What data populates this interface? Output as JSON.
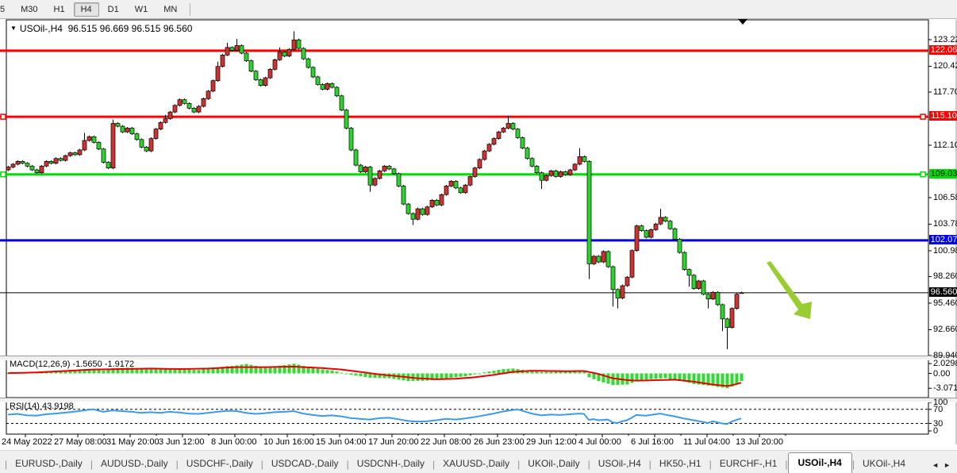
{
  "toolbar": {
    "timeframes": [
      "5",
      "M30",
      "H1",
      "H4",
      "D1",
      "W1",
      "MN"
    ],
    "active": "H4"
  },
  "header": {
    "symbol": "USOil-,H4",
    "ohlc_text": "96.515 96.669 96.515 96.560",
    "dropdown_icon": "chart-symbol-dropdown"
  },
  "tabs": {
    "items": [
      "EURUSD-,Daily",
      "AUDUSD-,Daily",
      "USDCHF-,Daily",
      "USDCAD-,Daily",
      "USDCNH-,Daily",
      "XAUUSD-,Daily",
      "UKOil-,Daily",
      "USOil-,H4",
      "HK50-,H1",
      "EURCHF-,H1",
      "USOil-,H4",
      "UKOil-,H4"
    ],
    "active_index": 10,
    "left_arrow": "◄",
    "right_arrow": "►"
  },
  "chart_data": {
    "type": "candlestick",
    "title": "USOil-,H4 96.515 96.669 96.515 96.560",
    "current_bar": {
      "open": 96.515,
      "high": 96.669,
      "low": 96.515,
      "close": 96.56
    },
    "price_axis_ticks": [
      "123.220",
      "120.420",
      "117.700",
      "112.100",
      "106.580",
      "103.780",
      "100.980",
      "98.260",
      "95.460",
      "92.660",
      "89.940"
    ],
    "horizontal_lines": [
      {
        "price": 122.06,
        "label": "122.06",
        "color": "#ff0000",
        "text": "#ffffff",
        "width": 3
      },
      {
        "price": 115.1,
        "label": "115.10",
        "color": "#ff0000",
        "text": "#ffffff",
        "width": 3,
        "handles": true
      },
      {
        "price": 109.03,
        "label": "109.03",
        "color": "#00dd00",
        "text": "#000000",
        "width": 3,
        "handles": true
      },
      {
        "price": 102.07,
        "label": "102.07",
        "color": "#0000e8",
        "text": "#ffffff",
        "width": 3
      },
      {
        "price": 96.56,
        "label": "96.560",
        "color": "#000000",
        "text": "#ffffff",
        "width": 1
      }
    ],
    "x_axis_labels": [
      "24 May 2022",
      "27 May 08:00",
      "31 May 20:00",
      "3 Jun 12:00",
      "8 Jun 00:00",
      "10 Jun 16:00",
      "15 Jun 04:00",
      "17 Jun 20:00",
      "22 Jun 08:00",
      "26 Jun 23:00",
      "29 Jun 12:00",
      "4 Jul 00:00",
      "6 Jul 16:00",
      "11 Jul 04:00",
      "13 Jul 20:00"
    ],
    "x_label_lefts": [
      2,
      68,
      134,
      200,
      266,
      332,
      398,
      464,
      530,
      597,
      663,
      729,
      795,
      861,
      927
    ],
    "candles": {
      "x0": 10,
      "dx": 6,
      "up_color": "#cc3333",
      "down_color": "#2fd32f",
      "closes": [
        109.8,
        110.1,
        110.4,
        110.2,
        109.9,
        109.5,
        109.2,
        109.9,
        110.4,
        110.2,
        110.7,
        110.5,
        111.0,
        111.3,
        111.1,
        111.6,
        112.6,
        113.0,
        112.4,
        111.7,
        110.3,
        109.7,
        114.4,
        114.1,
        113.5,
        113.9,
        113.3,
        112.7,
        111.9,
        111.5,
        112.8,
        113.8,
        114.5,
        114.9,
        115.6,
        116.3,
        116.9,
        116.5,
        116.0,
        115.6,
        116.2,
        117.0,
        117.8,
        118.9,
        120.4,
        121.6,
        122.4,
        122.1,
        122.6,
        121.8,
        121.0,
        119.9,
        119.0,
        118.4,
        119.2,
        120.1,
        121.1,
        121.9,
        121.5,
        122.2,
        123.2,
        122.3,
        121.2,
        120.3,
        119.3,
        118.5,
        118.0,
        118.6,
        118.2,
        117.3,
        115.8,
        113.9,
        111.6,
        110.0,
        109.3,
        109.8,
        107.9,
        108.6,
        109.4,
        109.9,
        109.6,
        109.1,
        107.8,
        105.9,
        104.9,
        104.3,
        105.4,
        104.8,
        105.6,
        106.3,
        105.8,
        106.9,
        107.8,
        108.3,
        107.6,
        107.1,
        107.9,
        108.8,
        109.7,
        110.6,
        111.5,
        112.2,
        112.8,
        113.5,
        113.9,
        114.4,
        113.8,
        112.9,
        111.8,
        110.7,
        109.9,
        109.2,
        108.4,
        108.9,
        109.4,
        108.8,
        109.3,
        109.0,
        109.5,
        110.1,
        110.9,
        110.4,
        99.6,
        100.4,
        99.8,
        100.9,
        99.3,
        96.9,
        96.0,
        97.3,
        98.2,
        101.0,
        103.6,
        103.1,
        102.4,
        103.2,
        103.8,
        104.5,
        104.1,
        103.3,
        102.2,
        100.8,
        99.0,
        98.4,
        97.0,
        97.8,
        96.4,
        95.9,
        96.6,
        95.3,
        93.8,
        92.9,
        94.9,
        96.4,
        96.56
      ],
      "overrides": {
        "0": {
          "o": 109.5
        },
        "16": {
          "h": 113.4
        },
        "22": {
          "h": 114.8
        },
        "33": {
          "h": 115.3
        },
        "44": {
          "h": 120.9
        },
        "46": {
          "h": 122.9
        },
        "48": {
          "h": 123.3
        },
        "57": {
          "h": 122.4
        },
        "60": {
          "h": 124.1
        },
        "76": {
          "l": 107.2
        },
        "85": {
          "l": 103.7
        },
        "105": {
          "h": 115.2
        },
        "112": {
          "l": 107.5
        },
        "120": {
          "h": 111.8
        },
        "122": {
          "l": 98.0
        },
        "127": {
          "l": 95.1
        },
        "128": {
          "l": 94.9
        },
        "137": {
          "h": 105.4
        },
        "143": {
          "l": 97.2
        },
        "147": {
          "l": 94.9
        },
        "150": {
          "l": 92.5
        },
        "151": {
          "l": 90.6
        },
        "154": {
          "o": 96.515,
          "h": 96.669,
          "l": 96.515
        }
      }
    },
    "macd": {
      "label": "MACD(12,26,9)",
      "values_text": "-1.5650 -1.9172",
      "axis": [
        "2.0298",
        "0.00",
        "-3.0714"
      ],
      "bar_color": "#32d932",
      "signal_color": "#e60000",
      "histogram": [
        0.1,
        0.13,
        0.16,
        0.19,
        0.22,
        0.25,
        0.29,
        0.33,
        0.37,
        0.41,
        0.45,
        0.53,
        0.6,
        0.68,
        0.75,
        0.83,
        0.9,
        0.83,
        0.75,
        0.68,
        0.6,
        0.85,
        1.1,
        1.13,
        1.15,
        1.18,
        1.2,
        1.1,
        1.0,
        0.9,
        0.8,
        0.85,
        0.9,
        0.95,
        1.0,
        0.93,
        0.85,
        0.8,
        0.75,
        0.72,
        0.7,
        0.83,
        0.97,
        1.1,
        1.23,
        1.37,
        1.5,
        1.55,
        1.65,
        1.8,
        1.95,
        1.75,
        1.55,
        1.35,
        1.2,
        1.3,
        1.45,
        1.6,
        1.7,
        1.85,
        2.0,
        1.8,
        1.55,
        1.35,
        1.15,
        0.95,
        0.82,
        0.7,
        0.6,
        0.38,
        0.15,
        -0.08,
        -0.3,
        -0.45,
        -0.6,
        -0.75,
        -0.9,
        -0.93,
        -0.95,
        -0.98,
        -1.0,
        -1.15,
        -1.3,
        -1.45,
        -1.6,
        -1.58,
        -1.55,
        -1.53,
        -1.5,
        -1.38,
        -1.25,
        -1.13,
        -1.0,
        -0.9,
        -0.8,
        -0.7,
        -0.6,
        -0.4,
        -0.2,
        0.0,
        0.2,
        0.38,
        0.55,
        0.73,
        0.9,
        0.95,
        1.0,
        0.88,
        0.75,
        0.63,
        0.5,
        0.45,
        0.3,
        0.32,
        0.3,
        0.33,
        0.35,
        0.38,
        0.4,
        0.5,
        0.6,
        0.4,
        -0.8,
        -1.2,
        -1.6,
        -1.87,
        -2.13,
        -2.4,
        -2.37,
        -2.33,
        -2.3,
        -1.95,
        -1.6,
        -1.43,
        -1.27,
        -1.18,
        -1.1,
        -1.05,
        -1.0,
        -1.2,
        -1.33,
        -1.4,
        -1.67,
        -1.93,
        -2.2,
        -2.3,
        -2.4,
        -2.5,
        -2.6,
        -2.8,
        -2.93,
        -3.05,
        -2.7,
        -2.2,
        -1.57
      ],
      "signal": [
        0.05,
        0.08,
        0.1,
        0.13,
        0.15,
        0.18,
        0.2,
        0.25,
        0.3,
        0.35,
        0.4,
        0.45,
        0.5,
        0.55,
        0.6,
        0.65,
        0.7,
        0.75,
        0.8,
        0.82,
        0.83,
        0.85,
        0.87,
        0.88,
        0.9,
        0.92,
        0.93,
        0.95,
        0.97,
        0.98,
        1.0,
        0.98,
        0.97,
        0.95,
        0.93,
        0.92,
        0.9,
        0.92,
        0.93,
        0.95,
        0.97,
        0.98,
        1.0,
        1.05,
        1.1,
        1.15,
        1.2,
        1.25,
        1.3,
        1.3,
        1.3,
        1.3,
        1.3,
        1.3,
        1.3,
        1.32,
        1.33,
        1.35,
        1.37,
        1.38,
        1.4,
        1.35,
        1.3,
        1.25,
        1.2,
        1.15,
        1.1,
        1.03,
        0.95,
        0.88,
        0.8,
        0.68,
        0.55,
        0.43,
        0.3,
        0.18,
        0.05,
        -0.08,
        -0.2,
        -0.3,
        -0.4,
        -0.5,
        -0.6,
        -0.7,
        -0.8,
        -0.9,
        -1.0,
        -1.05,
        -1.1,
        -1.15,
        -1.2,
        -1.18,
        -1.15,
        -1.13,
        -1.1,
        -1.03,
        -0.95,
        -0.88,
        -0.8,
        -0.68,
        -0.55,
        -0.43,
        -0.3,
        -0.15,
        0.0,
        0.15,
        0.3,
        0.36,
        0.43,
        0.49,
        0.55,
        0.54,
        0.53,
        0.51,
        0.5,
        0.49,
        0.48,
        0.46,
        0.45,
        0.48,
        0.5,
        0.5,
        0.3,
        0.1,
        -0.1,
        -0.4,
        -0.7,
        -1.0,
        -1.13,
        -1.25,
        -1.38,
        -1.44,
        -1.5,
        -1.48,
        -1.45,
        -1.43,
        -1.4,
        -1.38,
        -1.35,
        -1.33,
        -1.3,
        -1.4,
        -1.5,
        -1.6,
        -1.7,
        -1.85,
        -2.0,
        -2.15,
        -2.3,
        -2.4,
        -2.5,
        -2.6,
        -2.45,
        -2.2,
        -1.92
      ]
    },
    "rsi": {
      "label": "RSI(14)",
      "value_text": "43.9198",
      "axis": [
        "100",
        "70",
        "30",
        "0"
      ],
      "levels": [
        70,
        30
      ],
      "line_color": "#3d9ae8",
      "series": [
        55,
        56,
        57,
        55,
        53,
        52.5,
        52,
        54,
        56,
        57,
        58,
        59.3,
        60.7,
        62,
        63.5,
        65,
        67,
        69,
        70,
        66.5,
        63,
        65,
        67,
        66,
        65,
        64,
        63,
        61.5,
        60,
        61,
        62,
        61,
        60,
        61.5,
        63,
        62,
        61,
        59.5,
        58,
        57.5,
        57,
        58.5,
        60,
        61.5,
        63,
        64.5,
        66,
        65.5,
        65,
        62.5,
        60,
        58.5,
        57,
        58,
        59,
        60.5,
        62,
        62.5,
        63,
        64,
        65,
        61.5,
        58,
        56,
        54,
        52.5,
        51,
        52,
        53,
        51.5,
        50,
        47.5,
        45,
        44,
        43,
        42,
        41,
        43,
        45,
        45.5,
        46,
        44,
        42,
        39.5,
        37,
        36,
        35,
        35.5,
        36,
        37.5,
        39,
        41,
        43,
        42,
        41,
        42.5,
        44,
        46,
        48,
        50.5,
        53,
        55.5,
        58,
        61,
        64,
        66,
        68,
        70,
        66,
        62,
        58,
        55.5,
        53,
        54,
        55,
        54.5,
        54,
        55,
        56,
        57,
        58,
        57,
        40,
        42,
        39,
        40,
        41,
        33,
        31,
        36,
        39,
        46,
        54,
        53,
        52,
        54,
        56,
        58,
        55,
        52.5,
        50,
        47,
        44,
        41.5,
        39,
        36.5,
        34,
        31,
        36,
        33,
        30,
        28,
        35,
        40,
        43.92
      ]
    },
    "trend_arrow": {
      "color": "#9acd32",
      "from_x": 966,
      "from_y": 330,
      "to_x": 1019,
      "to_y": 399
    },
    "scroll_marker_x": 936
  }
}
